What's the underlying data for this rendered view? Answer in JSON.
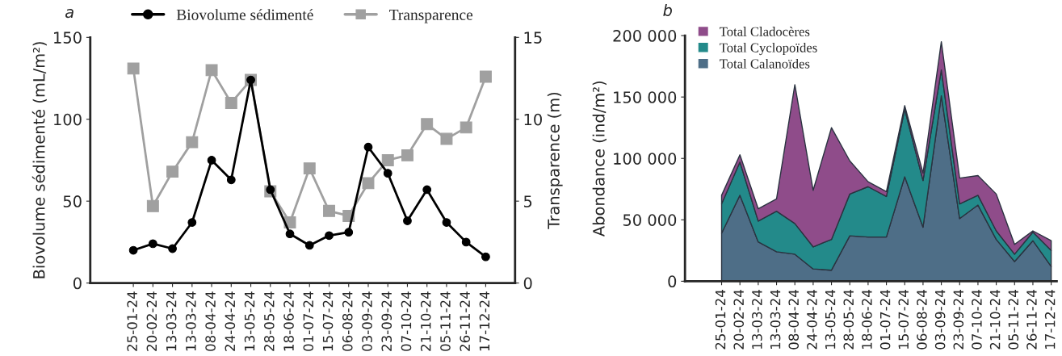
{
  "chart_data": [
    {
      "type": "line",
      "annotations": [
        "a"
      ],
      "ylabel": "Biovolume sédimenté (mL/m²)",
      "y2label": "Transparence (m)",
      "categories": [
        "25-01-24",
        "20-02-24",
        "13-03-24",
        "13-03-24",
        "08-04-24",
        "24-04-24",
        "13-05-24",
        "28-05-24",
        "18-06-24",
        "01-07-24",
        "15-07-24",
        "06-08-24",
        "03-09-24",
        "23-09-24",
        "07-10-24",
        "21-10-24",
        "05-11-24",
        "26-11-24",
        "17-12-24"
      ],
      "series": [
        {
          "name": "Biovolume sédimenté",
          "color": "#000000",
          "marker": "circle",
          "values": [
            20,
            24,
            21,
            37,
            75,
            63,
            124,
            57,
            30,
            23,
            29,
            31,
            83,
            67,
            38,
            57,
            37,
            25,
            16
          ]
        },
        {
          "name": "Transparence",
          "color": "#a0a0a0",
          "marker": "square",
          "axis": "y2",
          "values": [
            13.1,
            4.7,
            6.8,
            8.6,
            13.0,
            11.0,
            12.4,
            5.6,
            3.7,
            7.0,
            4.4,
            4.1,
            6.1,
            7.5,
            7.8,
            9.7,
            8.8,
            9.5,
            12.6
          ]
        }
      ],
      "ylim": [
        0,
        150
      ],
      "yticks": [
        0,
        50,
        100,
        150
      ],
      "y2lim": [
        0,
        15
      ],
      "y2ticks": [
        0,
        5,
        10,
        15
      ],
      "legend": "top",
      "grid": false,
      "line_style": "solid"
    },
    {
      "type": "area",
      "stacked": true,
      "annotations": [
        "b"
      ],
      "ylabel": "Abondance (ind/m²)",
      "categories": [
        "25-01-24",
        "20-02-24",
        "13-03-24",
        "13-03-24",
        "08-04-24",
        "24-04-24",
        "13-05-24",
        "28-05-24",
        "18-06-24",
        "01-07-24",
        "15-07-24",
        "06-08-24",
        "03-09-24",
        "23-09-24",
        "07-10-24",
        "21-10-24",
        "05-11-24",
        "26-11-24",
        "17-12-24"
      ],
      "series": [
        {
          "name": "Total Calanoïdes",
          "color": "#4e6e87",
          "values": [
            39000,
            70000,
            32000,
            24000,
            22000,
            10000,
            9000,
            37000,
            36000,
            36000,
            85000,
            44000,
            151000,
            51000,
            62000,
            34000,
            16000,
            33000,
            12000
          ]
        },
        {
          "name": "Total Cyclopoïdes",
          "color": "#238a8a",
          "values": [
            24000,
            27000,
            17000,
            33000,
            25000,
            18000,
            25000,
            34000,
            41000,
            33000,
            55000,
            38000,
            21000,
            12000,
            8000,
            7000,
            6000,
            7000,
            13000
          ]
        },
        {
          "name": "Total Cladocères",
          "color": "#8f4c8a",
          "values": [
            7000,
            6000,
            10000,
            10000,
            113000,
            46000,
            91000,
            27000,
            4000,
            4000,
            3000,
            6000,
            23000,
            21000,
            16000,
            30000,
            8000,
            1000,
            8000
          ]
        }
      ],
      "ylim": [
        0,
        200000
      ],
      "yticks": [
        {
          "value": 0,
          "label": "0"
        },
        {
          "value": 50000,
          "label": "50 000"
        },
        {
          "value": 100000,
          "label": "100 000"
        },
        {
          "value": 150000,
          "label": "150 000"
        },
        {
          "value": 200000,
          "label": "200 000"
        }
      ],
      "legend": "top left",
      "grid": false
    }
  ]
}
